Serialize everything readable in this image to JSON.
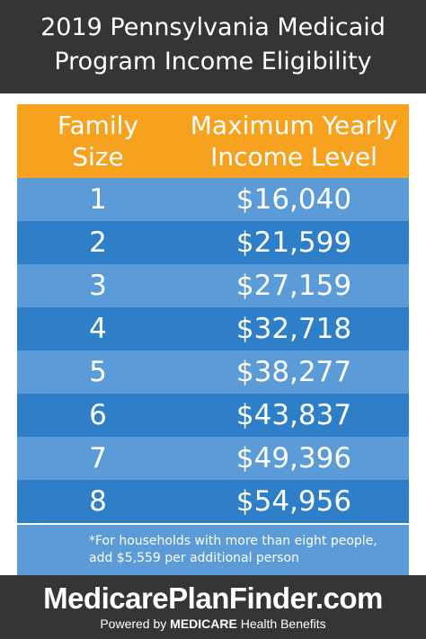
{
  "header": {
    "title_line1": "2019 Pennsylvania Medicaid",
    "title_line2": "Program Income Eligibility"
  },
  "table": {
    "col1_header": [
      "Family",
      "Size"
    ],
    "col2_header": [
      "Maximum Yearly",
      "Income Level"
    ],
    "rows": [
      {
        "size": "1",
        "amount": "$16,040"
      },
      {
        "size": "2",
        "amount": "$21,599"
      },
      {
        "size": "3",
        "amount": "$27,159"
      },
      {
        "size": "4",
        "amount": "$32,718"
      },
      {
        "size": "5",
        "amount": "$38,277"
      },
      {
        "size": "6",
        "amount": "$43,837"
      },
      {
        "size": "7",
        "amount": "$49,396"
      },
      {
        "size": "8",
        "amount": "$54,956"
      }
    ],
    "footnote_line1": "*For households with more than eight people,",
    "footnote_line2": "add $5,559 per additional person"
  },
  "footer": {
    "brand": "MedicarePlanFinder.com",
    "tagline_prefix": "Powered by ",
    "tagline_bold": "MEDICARE",
    "tagline_suffix": " Health Benefits"
  },
  "colors": {
    "dark_band": "#353535",
    "header_orange": "#f6a21e",
    "row_light": "#5b9bd8",
    "row_dark": "#2f7fc8"
  }
}
